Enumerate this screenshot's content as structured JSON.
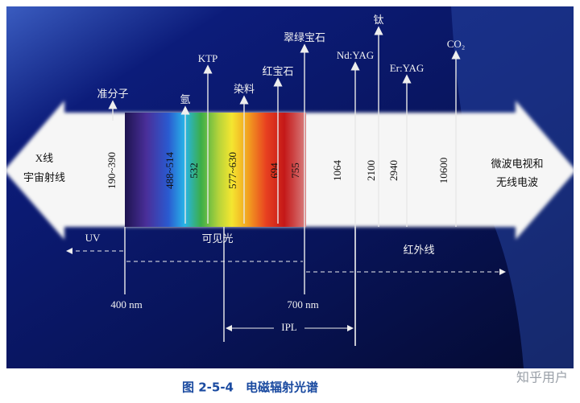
{
  "regions": {
    "left": [
      "X线",
      "宇宙射线"
    ],
    "right": [
      "微波电视和",
      "无线电波"
    ]
  },
  "band_labels": [
    "190~390",
    "488~514",
    "532",
    "577~630",
    "694",
    "755",
    "1064",
    "2100",
    "2940",
    "10600"
  ],
  "lasers": [
    "准分子",
    "氩",
    "KTP",
    "染料",
    "红宝石",
    "翠绿宝石",
    "Nd:YAG",
    "钛",
    "Er:YAG",
    "CO₂"
  ],
  "bands": {
    "uv": "UV",
    "visible": "可见光",
    "infrared": "红外线"
  },
  "boundaries": [
    "400 nm",
    "700 nm"
  ],
  "ipl": "IPL",
  "caption": {
    "number": "图 2-5-4",
    "title": "电磁辐射光谱"
  },
  "watermark": "知乎用户"
}
